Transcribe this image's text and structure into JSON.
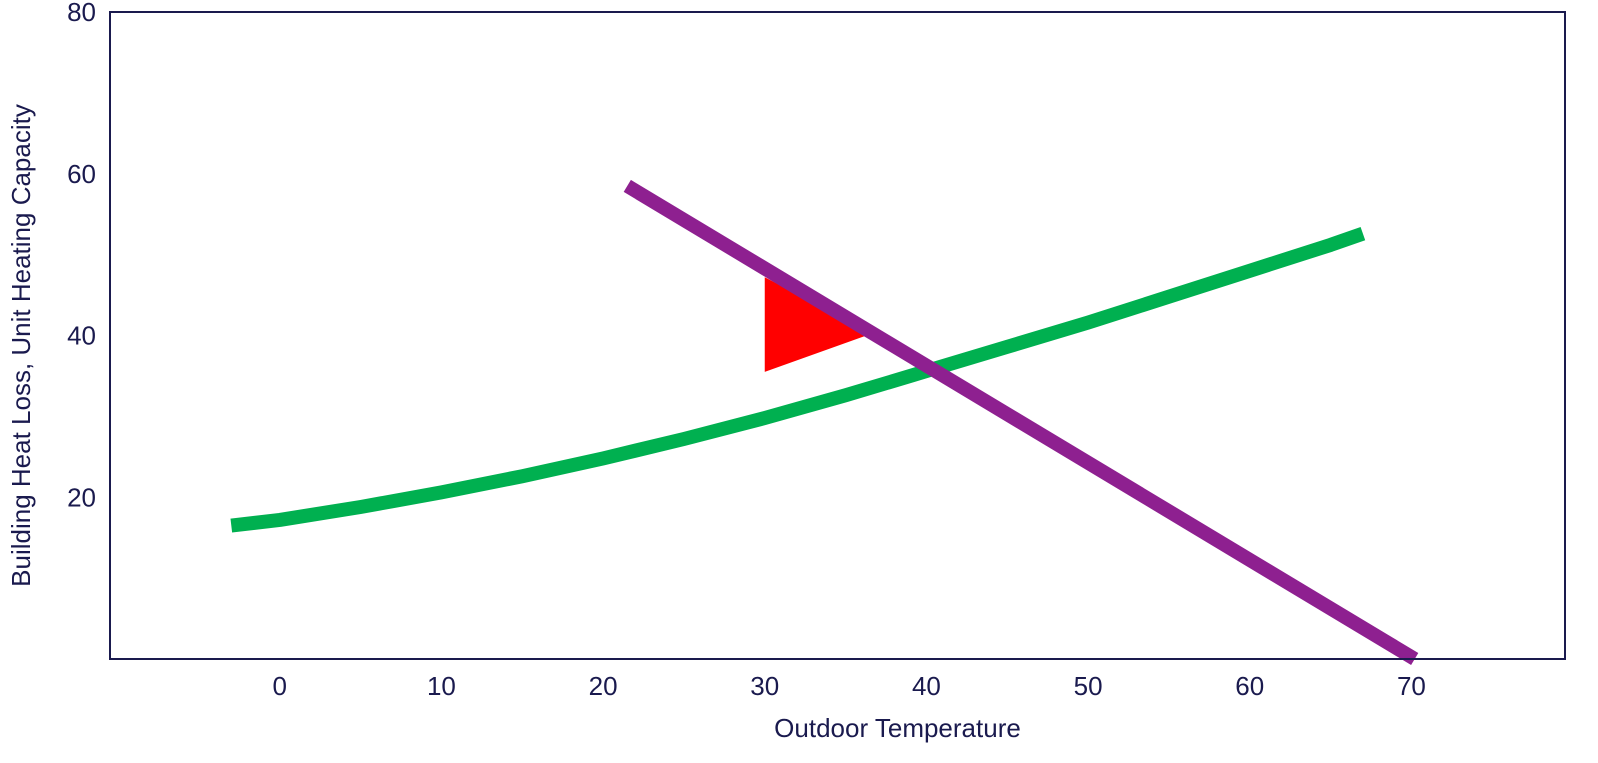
{
  "chart_data": {
    "type": "line",
    "title": "",
    "xlabel": "Outdoor Temperature",
    "ylabel": "Building Heat Loss, Unit Heating Capacity",
    "xlim": [
      -10.5,
      79.5
    ],
    "ylim": [
      0,
      80
    ],
    "x_ticks": [
      0,
      10,
      20,
      30,
      40,
      50,
      60,
      70
    ],
    "y_ticks": [
      20,
      40,
      60,
      80
    ],
    "grid": false,
    "legend": "none",
    "series": [
      {
        "color": "#00b050",
        "x": [
          -3,
          0,
          5,
          10,
          15,
          20,
          25,
          30,
          35,
          40,
          45,
          50,
          55,
          60,
          65,
          67
        ],
        "y": [
          16.5,
          17.2,
          18.8,
          20.6,
          22.6,
          24.8,
          27.2,
          29.8,
          32.6,
          35.6,
          38.6,
          41.6,
          44.8,
          48.0,
          51.2,
          52.6
        ]
      },
      {
        "color": "#8e2090",
        "x": [
          21.5,
          70.2
        ],
        "y": [
          58.5,
          0
        ]
      }
    ],
    "shaded_region": {
      "color": "#ff0000",
      "x": [
        30,
        30,
        36.7
      ],
      "y": [
        47.2,
        35.5,
        40.3
      ]
    }
  }
}
